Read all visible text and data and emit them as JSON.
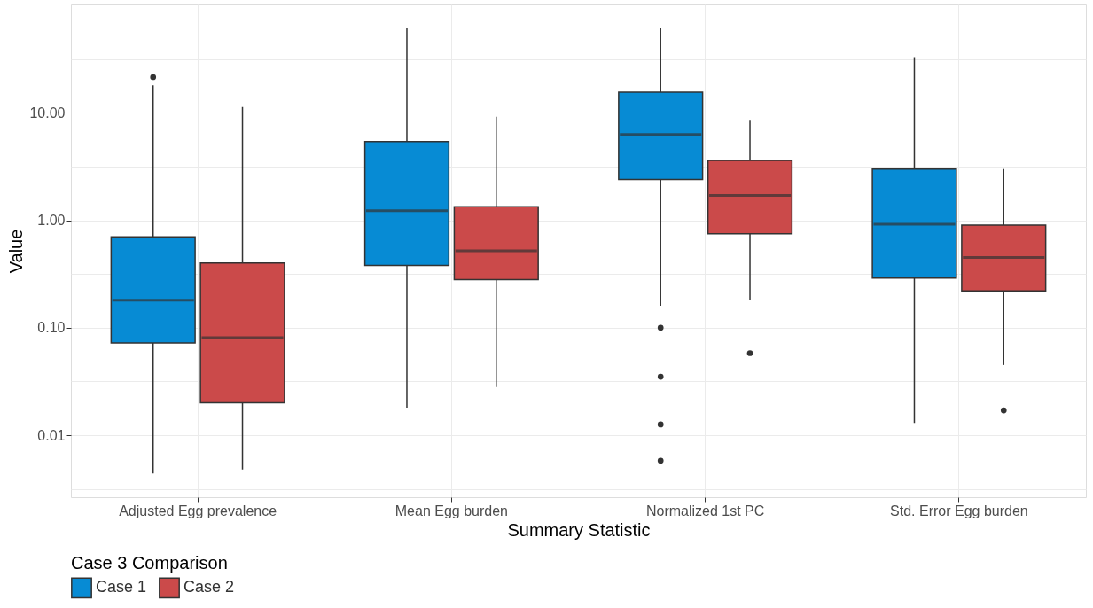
{
  "chart_data": {
    "type": "box",
    "xlabel": "Summary Statistic",
    "ylabel": "Value",
    "legend_title": "Case 3 Comparison",
    "categories": [
      "Adjusted Egg prevalence",
      "Mean Egg burden",
      "Normalized 1st PC",
      "Std. Error Egg burden"
    ],
    "series": [
      {
        "name": "Case 1",
        "color": "#078bd4",
        "boxes": [
          {
            "low": 0.0044,
            "q1": 0.072,
            "median": 0.18,
            "q3": 0.7,
            "high": 18,
            "outliers": [
              21.5
            ]
          },
          {
            "low": 0.018,
            "q1": 0.38,
            "median": 1.23,
            "q3": 5.4,
            "high": 61
          },
          {
            "low": 0.16,
            "q1": 2.4,
            "median": 6.3,
            "q3": 15.6,
            "high": 61,
            "outliers": [
              0.1,
              0.035,
              0.0126,
              0.0058
            ]
          },
          {
            "low": 0.013,
            "q1": 0.29,
            "median": 0.92,
            "q3": 3.0,
            "high": 33
          }
        ]
      },
      {
        "name": "Case 2",
        "color": "#cb4a4a",
        "boxes": [
          {
            "low": 0.0048,
            "q1": 0.02,
            "median": 0.081,
            "q3": 0.4,
            "high": 11.3
          },
          {
            "low": 0.028,
            "q1": 0.28,
            "median": 0.52,
            "q3": 1.34,
            "high": 9.2
          },
          {
            "low": 0.18,
            "q1": 0.75,
            "median": 1.7,
            "q3": 3.6,
            "high": 8.6,
            "outliers": [
              0.058
            ]
          },
          {
            "low": 0.045,
            "q1": 0.22,
            "median": 0.45,
            "q3": 0.9,
            "high": 3.0,
            "outliers": [
              0.017
            ]
          }
        ]
      }
    ],
    "log": true,
    "ylim": [
      0.00265,
      102
    ],
    "yticks": [
      {
        "value": 0.00316,
        "label": null
      },
      {
        "value": 0.01,
        "label": "0.01"
      },
      {
        "value": 0.0316,
        "label": null
      },
      {
        "value": 0.1,
        "label": "0.10"
      },
      {
        "value": 0.316,
        "label": null
      },
      {
        "value": 1,
        "label": "1.00"
      },
      {
        "value": 3.16,
        "label": null
      },
      {
        "value": 10,
        "label": "10.00"
      },
      {
        "value": 31.6,
        "label": null
      }
    ],
    "grid": true,
    "legend": "bottom"
  }
}
